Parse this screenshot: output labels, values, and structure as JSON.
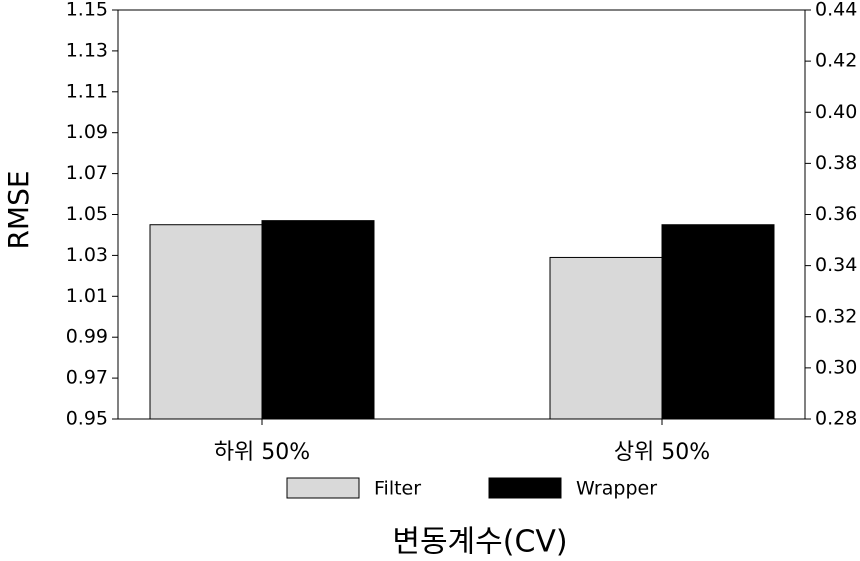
{
  "chart_data": {
    "type": "bar",
    "xlabel": "변동계수(CV)",
    "ylabel": "RMSE",
    "categories": [
      "하위 50%",
      "상위 50%"
    ],
    "series": [
      {
        "name": "Filter",
        "color": "#d9d9d9",
        "values": [
          1.045,
          1.029
        ]
      },
      {
        "name": "Wrapper",
        "color": "#000000",
        "values": [
          1.047,
          1.045
        ]
      }
    ],
    "ylim": [
      0.95,
      1.15
    ],
    "yticks": [
      0.95,
      0.97,
      0.99,
      1.01,
      1.03,
      1.05,
      1.07,
      1.09,
      1.11,
      1.13,
      1.15
    ],
    "y2lim": [
      0.28,
      0.44
    ],
    "y2ticks": [
      0.28,
      {
        "value": 0.3,
        "label": "0.30"
      },
      0.32,
      0.34,
      0.36,
      0.38,
      {
        "value": 0.4,
        "label": "0.40"
      },
      0.42,
      0.44
    ],
    "legend": "bottom"
  }
}
